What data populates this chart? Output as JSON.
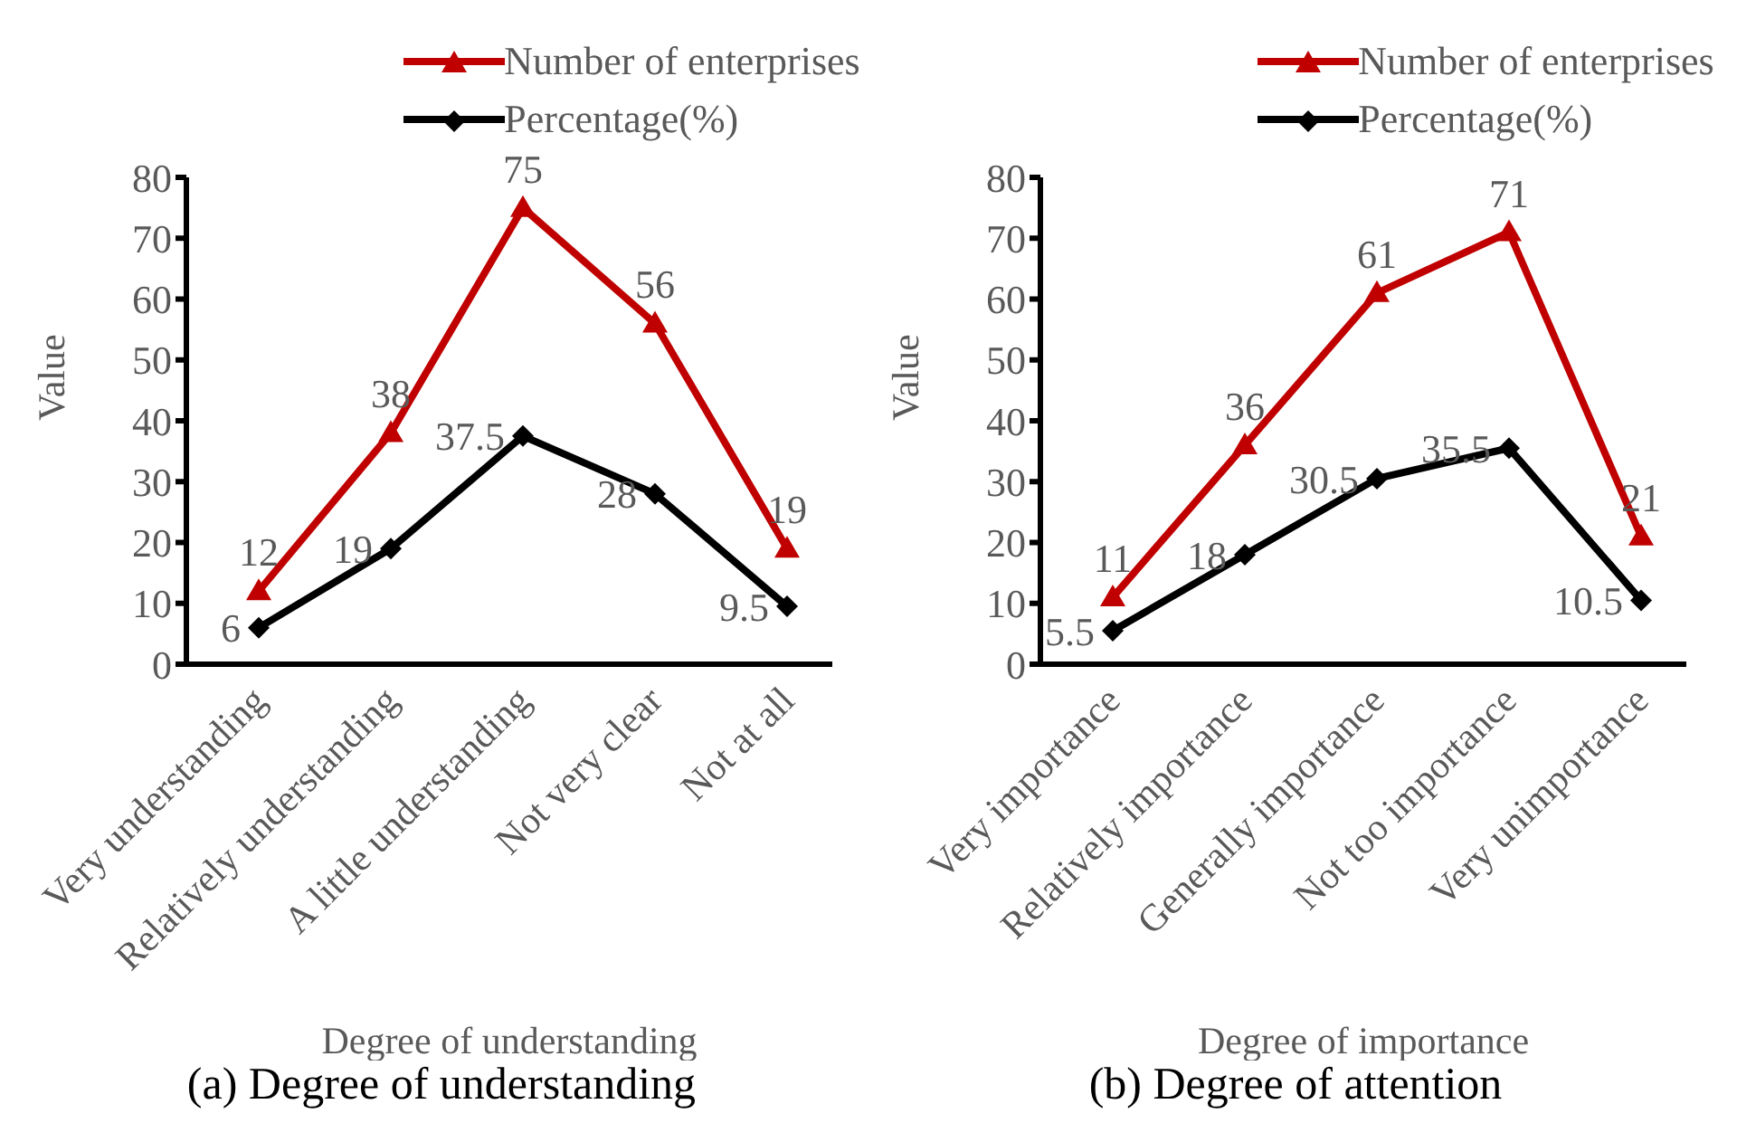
{
  "chart_data": [
    {
      "type": "line",
      "title": "(a) Degree of understanding",
      "xlabel": "Degree of understanding",
      "ylabel": "Value",
      "categories": [
        "Very understanding",
        "Relatively understanding",
        "A little understanding",
        "Not very clear",
        "Not at all"
      ],
      "series": [
        {
          "name": "Number of enterprises",
          "color": "#c00000",
          "marker": "triangle",
          "values": [
            12,
            38,
            75,
            56,
            19
          ]
        },
        {
          "name": "Percentage(%)",
          "color": "#000000",
          "marker": "diamond",
          "values": [
            6,
            19,
            37.5,
            28,
            9.5
          ]
        }
      ],
      "ylim": [
        0,
        80
      ],
      "yticks": [
        0,
        10,
        20,
        30,
        40,
        50,
        60,
        70,
        80
      ],
      "grid": false,
      "legend": "top",
      "data_labels": true,
      "line_style": "solid"
    },
    {
      "type": "line",
      "title": "(b) Degree of attention",
      "xlabel": "Degree of importance",
      "ylabel": "Value",
      "categories": [
        "Very importance",
        "Relatively importance",
        "Generally importance",
        "Not too importance",
        "Very unimportance"
      ],
      "series": [
        {
          "name": "Number of enterprises",
          "color": "#c00000",
          "marker": "triangle",
          "values": [
            11,
            36,
            61,
            71,
            21
          ]
        },
        {
          "name": "Percentage(%)",
          "color": "#000000",
          "marker": "diamond",
          "values": [
            5.5,
            18,
            30.5,
            35.5,
            10.5
          ]
        }
      ],
      "ylim": [
        0,
        80
      ],
      "yticks": [
        0,
        10,
        20,
        30,
        40,
        50,
        60,
        70,
        80
      ],
      "grid": false,
      "legend": "top",
      "data_labels": true,
      "line_style": "solid"
    }
  ]
}
